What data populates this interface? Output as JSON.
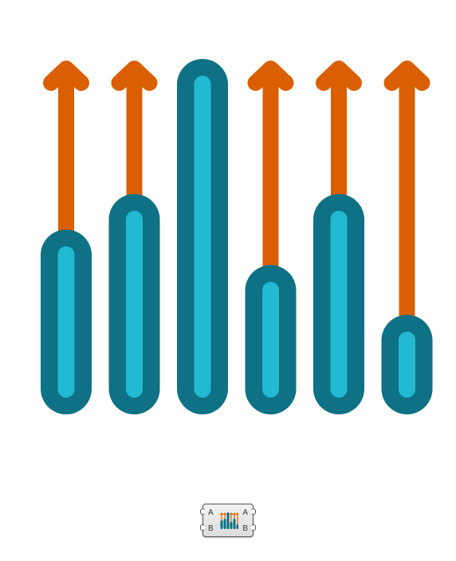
{
  "illustration": {
    "colors": {
      "arrow": "#d95f02",
      "capsule_outer": "#0e7185",
      "capsule_inner": "#22b9d2",
      "background": "#ffffff"
    },
    "bars": [
      {
        "level": 0.52,
        "arrow": true
      },
      {
        "level": 0.62,
        "arrow": true
      },
      {
        "level": 1.0,
        "arrow": false
      },
      {
        "level": 0.42,
        "arrow": true
      },
      {
        "level": 0.62,
        "arrow": true
      },
      {
        "level": 0.28,
        "arrow": true
      }
    ]
  },
  "component": {
    "input_a": "A",
    "input_b": "B",
    "output_a": "A",
    "output_b": "B"
  }
}
